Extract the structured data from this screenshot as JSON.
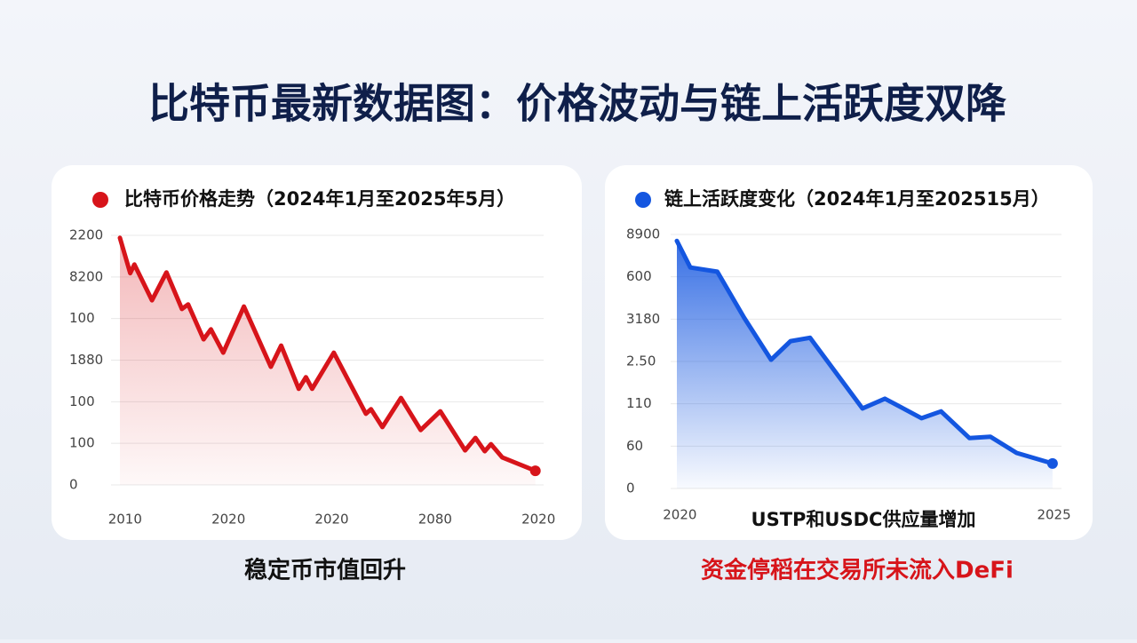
{
  "title": "比特币最新数据图：价格波动与链上活跃度双降",
  "chart_data": [
    {
      "type": "line",
      "title": "比特币价格走势（2024年1月至2025年5月）",
      "color": "#d7141a",
      "x": [
        -0.05,
        0.05,
        0.09,
        0.26,
        0.4,
        0.55,
        0.61,
        0.76,
        0.83,
        0.95,
        1.15,
        1.41,
        1.51,
        1.68,
        1.75,
        1.81,
        2.02,
        2.33,
        2.38,
        2.49,
        2.67,
        2.86,
        3.05,
        3.29,
        3.39,
        3.48,
        3.54,
        3.65,
        3.97
      ],
      "values": [
        5.94,
        5.09,
        5.3,
        4.44,
        5.11,
        4.23,
        4.34,
        3.5,
        3.74,
        3.18,
        4.29,
        2.84,
        3.35,
        2.31,
        2.59,
        2.31,
        3.18,
        1.71,
        1.82,
        1.39,
        2.09,
        1.32,
        1.77,
        0.83,
        1.13,
        0.81,
        0.98,
        0.66,
        0.34
      ],
      "xlim": [
        -0.05,
        4.05
      ],
      "xticks": [
        {
          "value": 0,
          "label": "2010"
        },
        {
          "value": 1,
          "label": "2020"
        },
        {
          "value": 2,
          "label": "2020"
        },
        {
          "value": 3,
          "label": "2080"
        },
        {
          "value": 4,
          "label": "2020"
        }
      ],
      "ylim": [
        0,
        6
      ],
      "yticks": [
        {
          "value": 0,
          "label": "0"
        },
        {
          "value": 1,
          "label": "100"
        },
        {
          "value": 2,
          "label": "100"
        },
        {
          "value": 3,
          "label": "1880"
        },
        {
          "value": 4,
          "label": "100"
        },
        {
          "value": 5,
          "label": "8200"
        },
        {
          "value": 6,
          "label": "2200"
        }
      ],
      "grid": true,
      "caption": "稳定币市值回升"
    },
    {
      "type": "line",
      "title": "链上活跃度变化（2024年1月至202515月）",
      "color": "#1456e0",
      "x": [
        2019.96,
        2020.14,
        2020.5,
        2020.86,
        2021.22,
        2021.48,
        2021.74,
        2022.44,
        2022.74,
        2023.23,
        2023.49,
        2023.87,
        2024.15,
        2024.5,
        2024.98
      ],
      "values": [
        5.85,
        5.22,
        5.12,
        4.03,
        3.04,
        3.48,
        3.56,
        1.89,
        2.12,
        1.66,
        1.82,
        1.19,
        1.22,
        0.84,
        0.59
      ],
      "xlim": [
        2019.96,
        2025.1
      ],
      "xticks": [
        2020,
        2025
      ],
      "ylim": [
        0,
        6
      ],
      "yticks": [
        {
          "value": 0,
          "label": "0"
        },
        {
          "value": 1,
          "label": "60"
        },
        {
          "value": 2,
          "label": "110"
        },
        {
          "value": 3,
          "label": "2.50"
        },
        {
          "value": 4,
          "label": "3180"
        },
        {
          "value": 5,
          "label": "600"
        },
        {
          "value": 6,
          "label": "8900"
        }
      ],
      "grid": true,
      "annotation": "USTP和USDC供应量增加",
      "caption": "资金停稻在交易所未流入DeFi"
    }
  ]
}
